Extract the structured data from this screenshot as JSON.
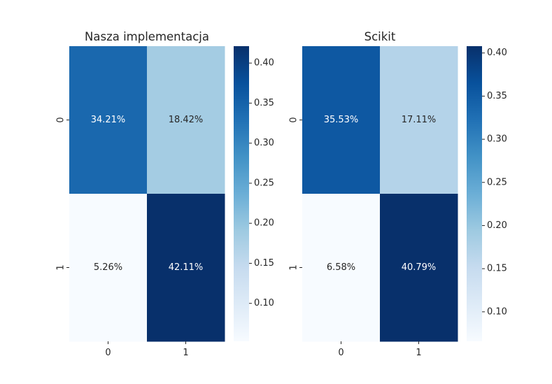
{
  "chart_data": [
    {
      "type": "heatmap",
      "title": "Nasza implementacja",
      "x_categories": [
        "0",
        "1"
      ],
      "y_categories": [
        "0",
        "1"
      ],
      "values": [
        [
          0.3421,
          0.1842
        ],
        [
          0.0526,
          0.4211
        ]
      ],
      "cell_labels": [
        [
          "34.21%",
          "18.42%"
        ],
        [
          "5.26%",
          "42.11%"
        ]
      ],
      "colormap": "Blues",
      "colorbar": {
        "min": 0.0526,
        "max": 0.4211,
        "ticks": [
          0.1,
          0.15,
          0.2,
          0.25,
          0.3,
          0.35,
          0.4
        ],
        "tick_labels": [
          "0.10",
          "0.15",
          "0.20",
          "0.25",
          "0.30",
          "0.35",
          "0.40"
        ]
      }
    },
    {
      "type": "heatmap",
      "title": "Scikit",
      "x_categories": [
        "0",
        "1"
      ],
      "y_categories": [
        "0",
        "1"
      ],
      "values": [
        [
          0.3553,
          0.1711
        ],
        [
          0.0658,
          0.4079
        ]
      ],
      "cell_labels": [
        [
          "35.53%",
          "17.11%"
        ],
        [
          "6.58%",
          "40.79%"
        ]
      ],
      "colormap": "Blues",
      "colorbar": {
        "min": 0.0658,
        "max": 0.4079,
        "ticks": [
          0.1,
          0.15,
          0.2,
          0.25,
          0.3,
          0.35,
          0.4
        ],
        "tick_labels": [
          "0.10",
          "0.15",
          "0.20",
          "0.25",
          "0.30",
          "0.35",
          "0.40"
        ]
      }
    }
  ]
}
